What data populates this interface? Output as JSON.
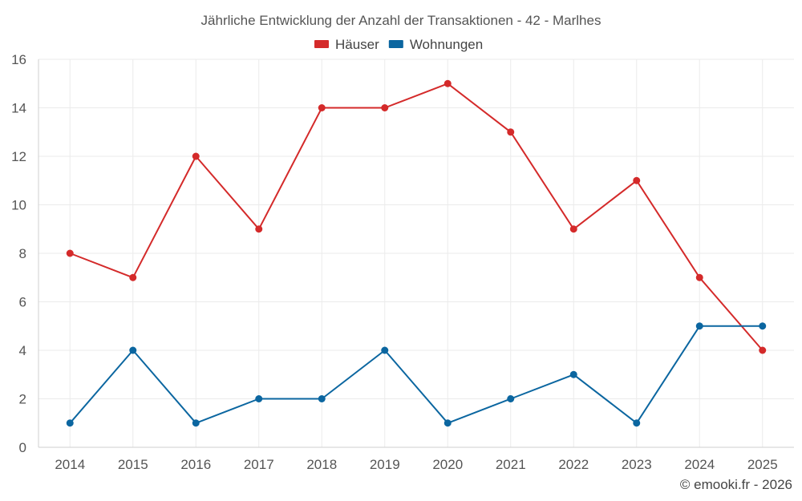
{
  "chart_data": {
    "type": "line",
    "title": "Jährliche Entwicklung der Anzahl der Transaktionen - 42 - Marlhes",
    "categories": [
      "2014",
      "2015",
      "2016",
      "2017",
      "2018",
      "2019",
      "2020",
      "2021",
      "2022",
      "2023",
      "2024",
      "2025"
    ],
    "series": [
      {
        "name": "Häuser",
        "color": "#d42a2a",
        "values": [
          8,
          7,
          12,
          9,
          14,
          14,
          15,
          13,
          9,
          11,
          7,
          4
        ]
      },
      {
        "name": "Wohnungen",
        "color": "#0b66a0",
        "values": [
          1,
          4,
          1,
          2,
          2,
          4,
          1,
          2,
          3,
          1,
          5,
          5
        ]
      }
    ],
    "yticks": [
      0,
      2,
      4,
      6,
      8,
      10,
      12,
      14,
      16
    ],
    "ylim": [
      0,
      16
    ],
    "grid": true,
    "legend": "top-center",
    "xlabel": "",
    "ylabel": ""
  },
  "credit": "© emooki.fr - 2026"
}
